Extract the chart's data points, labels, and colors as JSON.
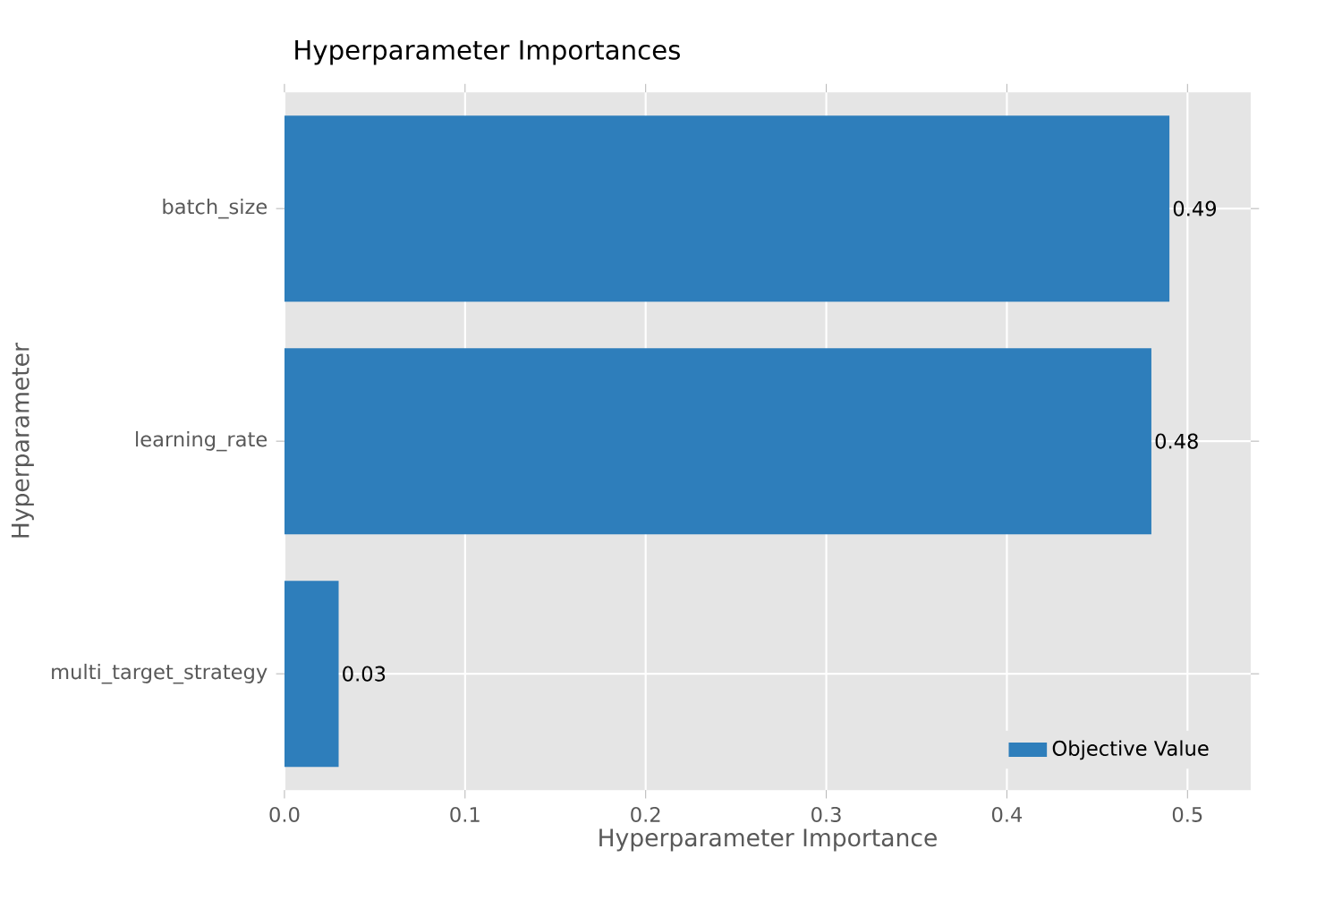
{
  "chart_data": {
    "type": "bar",
    "orientation": "horizontal",
    "title": "Hyperparameter Importances",
    "xlabel": "Hyperparameter Importance",
    "ylabel": "Hyperparameter",
    "categories": [
      "batch_size",
      "learning_rate",
      "multi_target_strategy"
    ],
    "series": [
      {
        "name": "Objective Value",
        "color": "#2e7ebb",
        "values": [
          0.49,
          0.48,
          0.03
        ]
      }
    ],
    "xlim": [
      0,
      0.535
    ],
    "xticks": [
      {
        "value": 0,
        "label": "0.0"
      },
      0.1,
      0.2,
      0.3,
      0.4,
      0.5
    ],
    "data_labels": true,
    "grid": true,
    "legend": "bottom right"
  }
}
